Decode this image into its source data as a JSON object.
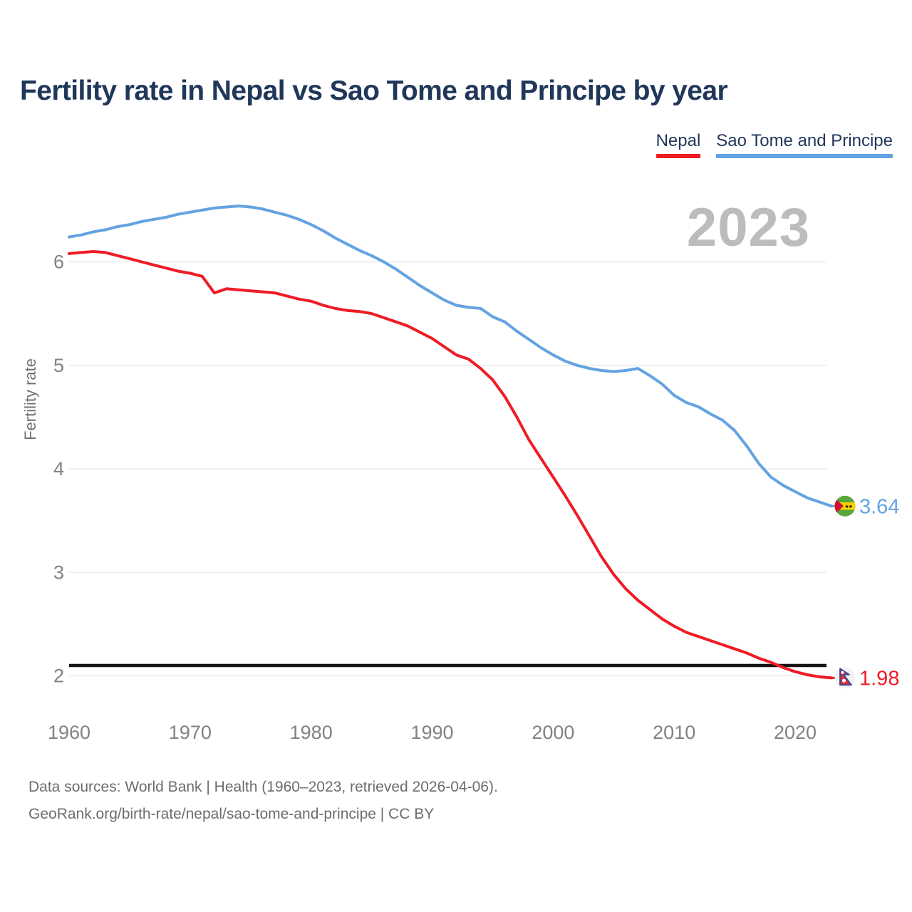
{
  "title": "Fertility rate in Nepal vs Sao Tome and Principe by year",
  "watermark_year": "2023",
  "footer": {
    "line1": "Data sources: World Bank | Health (1960–2023, retrieved 2026-04-06).",
    "line2": "GeoRank.org/birth-rate/nepal/sao-tome-and-principe | CC BY"
  },
  "colors": {
    "title_text": "#20375a",
    "axis_text": "#828282",
    "gridline": "#ebebeb",
    "watermark": "#bcbcbc",
    "reference_line": "#141414",
    "nepal_red": "#ee1c25",
    "sao_tome_blue": "#64a3e2"
  },
  "chart_data": {
    "type": "line",
    "title": "Fertility rate in Nepal vs Sao Tome and Principe by year",
    "xlabel": "",
    "ylabel": "Fertility rate",
    "x_range": [
      1960,
      2023
    ],
    "ylim": [
      1.8,
      6.7
    ],
    "y_ticks": [
      2,
      3,
      4,
      5,
      6
    ],
    "x_ticks": [
      1960,
      1970,
      1980,
      1990,
      2000,
      2010,
      2020
    ],
    "grid": "horizontal",
    "legend_position": "top-right",
    "reference_line": {
      "value": 2.1
    },
    "series": [
      {
        "name": "Nepal",
        "color": "#ee1c25",
        "flag": "nepal-flag-icon",
        "end_label": "1.98",
        "x_start": 1960,
        "values": [
          6.08,
          6.09,
          6.1,
          6.09,
          6.06,
          6.03,
          6.0,
          5.97,
          5.94,
          5.91,
          5.89,
          5.86,
          5.7,
          5.74,
          5.73,
          5.72,
          5.71,
          5.7,
          5.67,
          5.64,
          5.62,
          5.58,
          5.55,
          5.53,
          5.52,
          5.5,
          5.46,
          5.42,
          5.38,
          5.32,
          5.26,
          5.18,
          5.1,
          5.06,
          4.97,
          4.86,
          4.7,
          4.5,
          4.28,
          4.1,
          3.92,
          3.74,
          3.55,
          3.35,
          3.15,
          2.98,
          2.84,
          2.73,
          2.64,
          2.55,
          2.48,
          2.42,
          2.38,
          2.34,
          2.3,
          2.26,
          2.22,
          2.17,
          2.13,
          2.08,
          2.04,
          2.01,
          1.99,
          1.98
        ]
      },
      {
        "name": "Sao Tome and Principe",
        "color": "#64a3e2",
        "flag": "sao-tome-flag-icon",
        "end_label": "3.64",
        "x_start": 1960,
        "values": [
          6.24,
          6.26,
          6.29,
          6.31,
          6.34,
          6.36,
          6.39,
          6.41,
          6.43,
          6.46,
          6.48,
          6.5,
          6.52,
          6.53,
          6.54,
          6.53,
          6.51,
          6.48,
          6.45,
          6.41,
          6.36,
          6.3,
          6.23,
          6.17,
          6.11,
          6.06,
          6.0,
          5.93,
          5.85,
          5.77,
          5.7,
          5.63,
          5.58,
          5.56,
          5.55,
          5.47,
          5.42,
          5.33,
          5.25,
          5.17,
          5.1,
          5.04,
          5.0,
          4.97,
          4.95,
          4.94,
          4.95,
          4.97,
          4.9,
          4.82,
          4.71,
          4.64,
          4.6,
          4.53,
          4.47,
          4.37,
          4.22,
          4.05,
          3.92,
          3.84,
          3.78,
          3.72,
          3.68,
          3.64
        ]
      }
    ]
  }
}
